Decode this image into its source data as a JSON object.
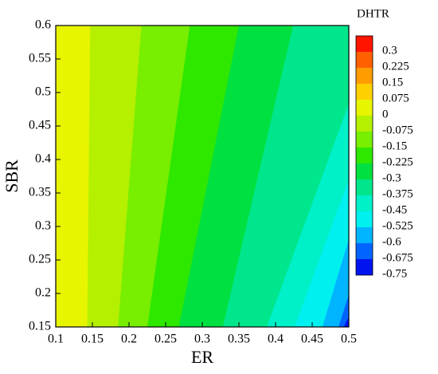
{
  "chart_data": {
    "type": "contour",
    "x_label": "ER",
    "y_label": "SBR",
    "xlim": [
      0.1,
      0.5
    ],
    "ylim": [
      0.15,
      0.6
    ],
    "xticks": [
      0.1,
      0.15,
      0.2,
      0.25,
      0.3,
      0.35,
      0.4,
      0.45,
      0.5
    ],
    "yticks": [
      0.15,
      0.2,
      0.25,
      0.3,
      0.35,
      0.4,
      0.45,
      0.5,
      0.55,
      0.6
    ],
    "colorbar": {
      "title": "DHTR",
      "ticks": [
        0.3,
        0.225,
        0.15,
        0.075,
        0,
        -0.075,
        -0.15,
        -0.225,
        -0.3,
        -0.375,
        -0.45,
        -0.525,
        -0.6,
        -0.675,
        -0.75
      ],
      "colors": [
        "#ff1400",
        "#ff6000",
        "#ff9c00",
        "#ffd000",
        "#e8f500",
        "#b4f000",
        "#78ee00",
        "#2ee800",
        "#00e040",
        "#00e68c",
        "#00f0c8",
        "#00f0f0",
        "#00b4ff",
        "#0064ff",
        "#0014f0"
      ]
    },
    "contours": [
      {
        "level": 0,
        "x": [
          0.143,
          0.147
        ],
        "y": [
          0.15,
          0.6
        ]
      },
      {
        "level": -0.075,
        "x": [
          0.185,
          0.217
        ],
        "y": [
          0.15,
          0.6
        ]
      },
      {
        "level": -0.15,
        "x": [
          0.225,
          0.283
        ],
        "y": [
          0.15,
          0.6
        ]
      },
      {
        "level": -0.225,
        "x": [
          0.268,
          0.35
        ],
        "y": [
          0.15,
          0.6
        ]
      },
      {
        "level": -0.3,
        "x": [
          0.328,
          0.424
        ],
        "y": [
          0.15,
          0.6
        ]
      },
      {
        "level": -0.375,
        "x": [
          0.388,
          0.5
        ],
        "y": [
          0.15,
          0.483
        ]
      },
      {
        "level": -0.45,
        "x": [
          0.426,
          0.5
        ],
        "y": [
          0.15,
          0.37
        ]
      },
      {
        "level": -0.525,
        "x": [
          0.464,
          0.5
        ],
        "y": [
          0.15,
          0.281
        ]
      },
      {
        "level": -0.6,
        "x": [
          0.486,
          0.5
        ],
        "y": [
          0.15,
          0.198
        ]
      },
      {
        "level": -0.675,
        "x": [
          0.493,
          0.5
        ],
        "y": [
          0.15,
          0.165
        ]
      }
    ]
  }
}
